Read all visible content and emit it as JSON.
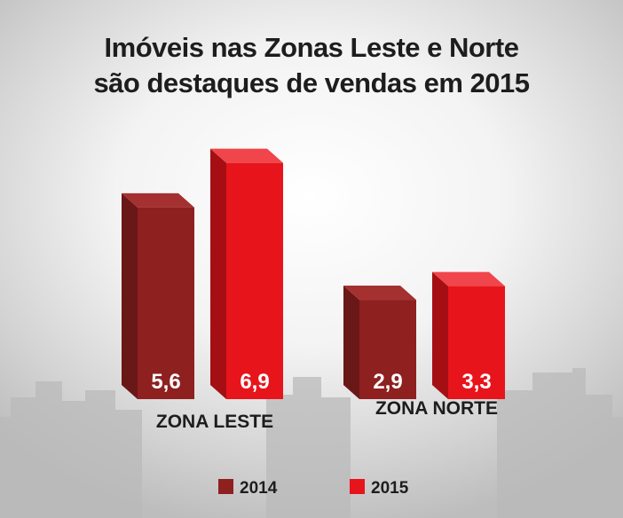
{
  "title_lines": [
    "Imóveis nas Zonas Leste e Norte",
    "são destaques de vendas em 2015"
  ],
  "colors": {
    "series_2014": "#8f2020",
    "series_2015": "#e8141b",
    "text": "#1d1d1d",
    "value_label": "#ffffff"
  },
  "chart_data": {
    "type": "bar",
    "title": "Imóveis nas Zonas Leste e Norte são destaques de vendas em 2015",
    "categories": [
      "ZONA LESTE",
      "ZONA NORTE"
    ],
    "series": [
      {
        "name": "2014",
        "values": [
          5.6,
          2.9
        ],
        "labels": [
          "5,6",
          "2,9"
        ]
      },
      {
        "name": "2015",
        "values": [
          6.9,
          3.3
        ],
        "labels": [
          "6,9",
          "3,3"
        ]
      }
    ],
    "legend": "bottom-center",
    "grid": false,
    "ylim": [
      0,
      8
    ]
  }
}
